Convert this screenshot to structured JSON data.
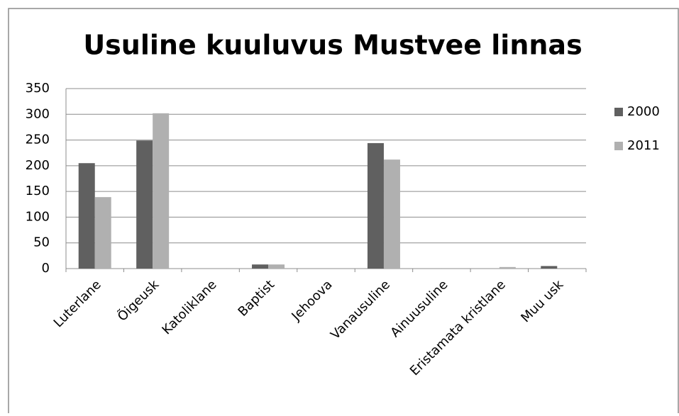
{
  "chart_data": {
    "type": "bar",
    "title": "Usuline kuuluvus Mustvee linnas",
    "categories": [
      "Luterlane",
      "Õigeusk",
      "Katoliklane",
      "Baptist",
      "Jehoova",
      "Vanausuline",
      "Ainuusuline",
      "Eristamata kristlane",
      "Muu usk"
    ],
    "series": [
      {
        "name": "2000",
        "color": "#606060",
        "values": [
          205,
          249,
          0,
          8,
          0,
          244,
          0,
          0,
          5
        ]
      },
      {
        "name": "2011",
        "color": "#b0b0b0",
        "values": [
          139,
          302,
          1,
          8,
          1,
          212,
          1,
          3,
          0
        ]
      }
    ],
    "ylim": [
      0,
      350
    ],
    "yticks": [
      0,
      50,
      100,
      150,
      200,
      250,
      300,
      350
    ],
    "grid": true,
    "legend": "right"
  }
}
